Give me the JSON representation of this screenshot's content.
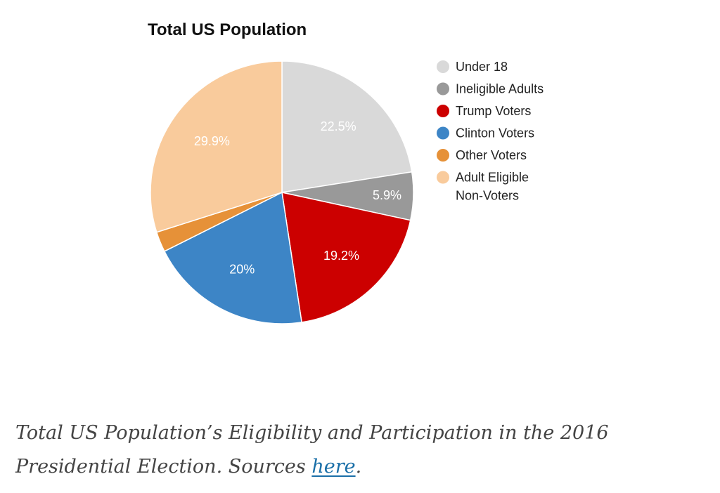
{
  "chart_data": {
    "type": "pie",
    "title": "Total US Population",
    "slices": [
      {
        "label": "Under 18",
        "value": 22.5,
        "display": "22.5%",
        "color": "#d9d9d9"
      },
      {
        "label": "Ineligible Adults",
        "value": 5.9,
        "display": "5.9%",
        "color": "#999999"
      },
      {
        "label": "Trump Voters",
        "value": 19.2,
        "display": "19.2%",
        "color": "#cc0000"
      },
      {
        "label": "Clinton Voters",
        "value": 20.0,
        "display": "20%",
        "color": "#3d85c6"
      },
      {
        "label": "Other Voters",
        "value": 2.5,
        "display": "",
        "color": "#e69138"
      },
      {
        "label": "Adult Eligible Non-Voters",
        "value": 29.9,
        "display": "29.9%",
        "color": "#f9cb9c"
      }
    ],
    "legend_position": "right"
  },
  "caption": {
    "text": "Total US Population’s Eligibility and Participation in the 2016 Presidential Election. Sources ",
    "link_text": "here",
    "trailing": "."
  }
}
